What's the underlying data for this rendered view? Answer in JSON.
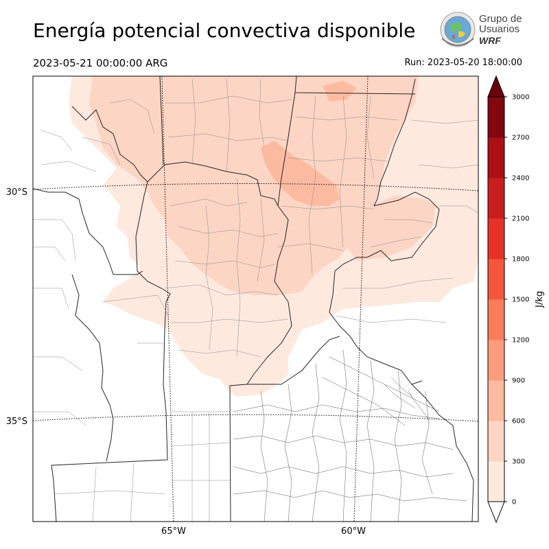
{
  "header": {
    "title": "Energía potencial convectiva disponible",
    "valid_time": "2023-05-21 00:00:00 ARG",
    "run_time": "Run: 2023-05-20 18:00:00"
  },
  "logo": {
    "line1": "Grupo de",
    "line2": "Usuarios",
    "line3": "WRF"
  },
  "map": {
    "latitude_labels": [
      "30°S",
      "35°S"
    ],
    "longitude_labels": [
      "65°W",
      "60°W"
    ]
  },
  "colorbar": {
    "label": "J/kg",
    "ticks": [
      "0",
      "300",
      "600",
      "900",
      "1200",
      "1500",
      "1800",
      "2100",
      "2400",
      "2700",
      "3000"
    ],
    "colors": [
      "#fee9df",
      "#fdd5c4",
      "#fcbba1",
      "#fc9c7d",
      "#fb7c5c",
      "#f5553d",
      "#e83229",
      "#c91d1e",
      "#ab1016",
      "#82070f"
    ],
    "under_color": "#ffffff",
    "over_color": "#67000d",
    "extend": "both"
  }
}
